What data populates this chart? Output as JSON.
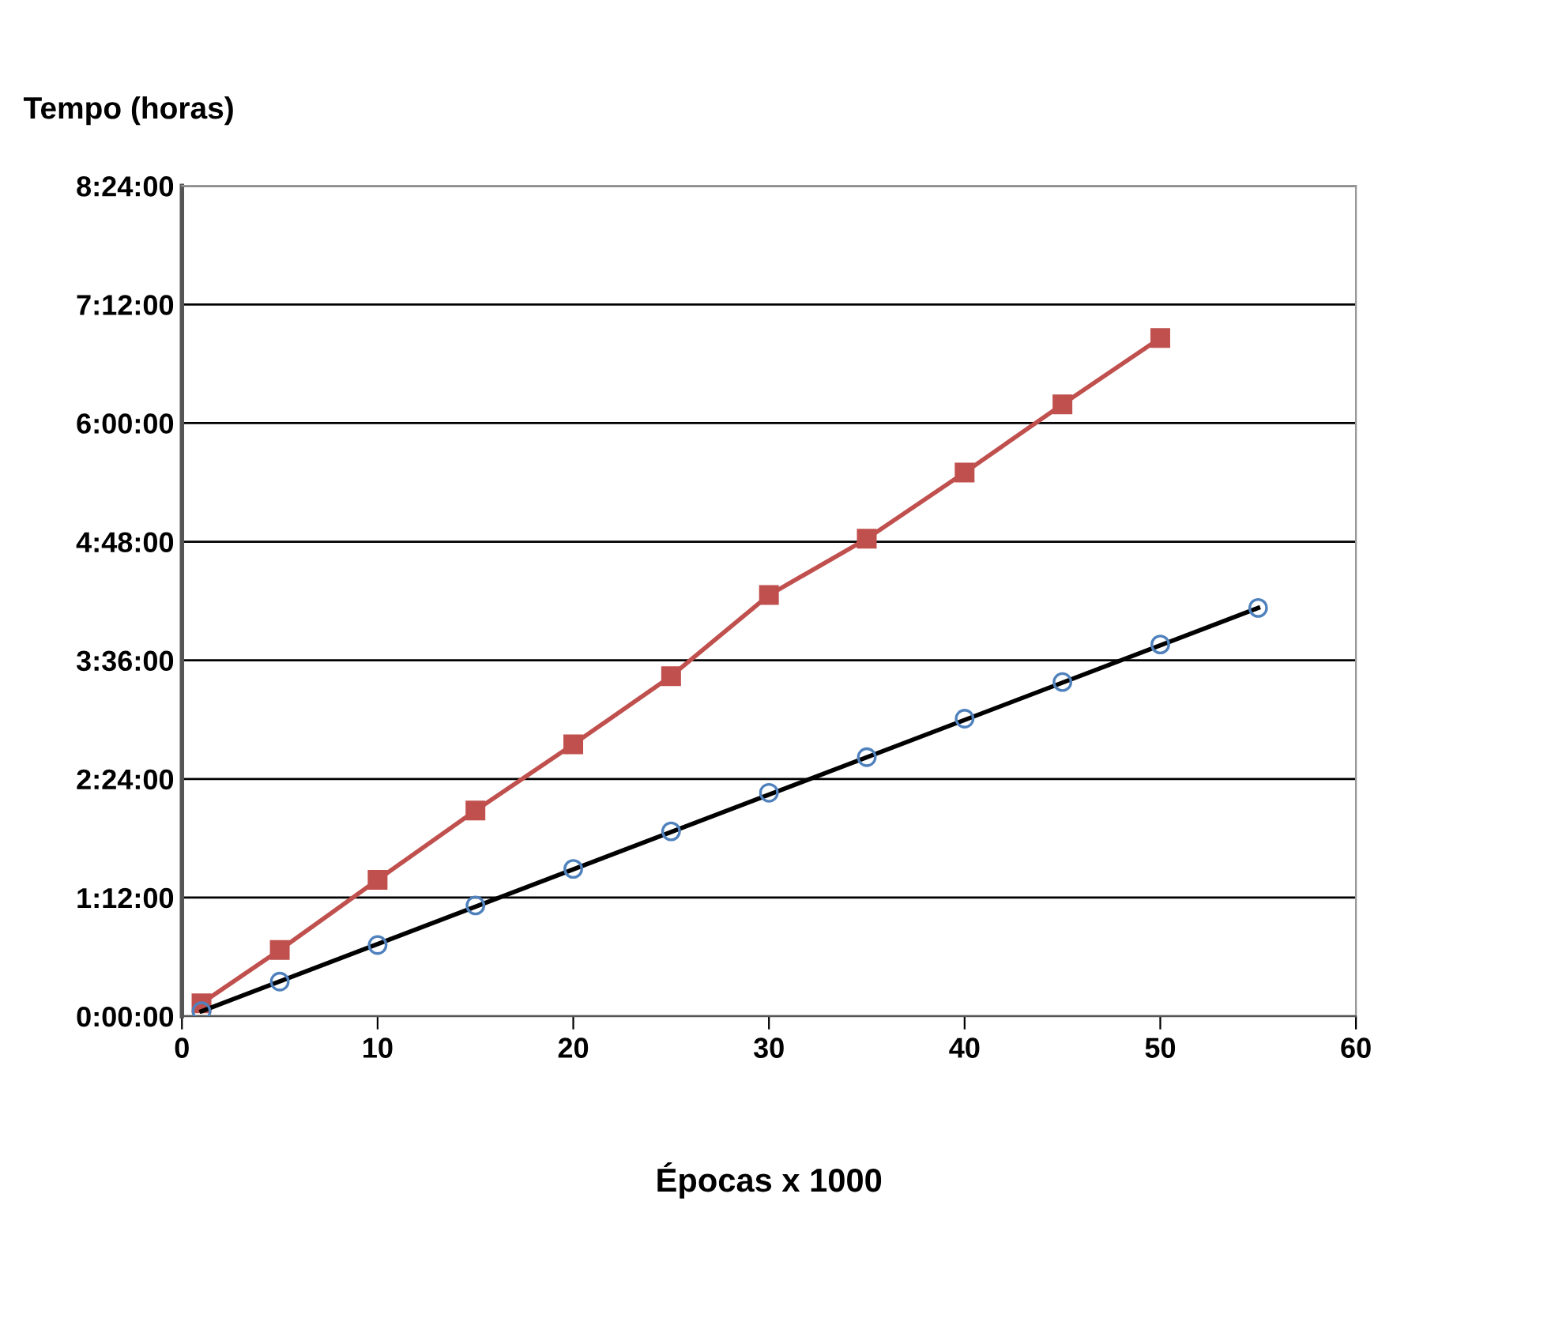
{
  "chart_data": {
    "type": "line",
    "ylabel": "Tempo (horas)",
    "xlabel": "Épocas x 1000",
    "xlim": [
      0,
      60
    ],
    "xticks": [
      0,
      10,
      20,
      30,
      40,
      50,
      60
    ],
    "ylim": [
      0,
      8.4
    ],
    "yticks": [
      {
        "value": 0,
        "label": "0:00:00"
      },
      {
        "value": 1.2,
        "label": "1:12:00"
      },
      {
        "value": 2.4,
        "label": "2:24:00"
      },
      {
        "value": 3.6,
        "label": "3:36:00"
      },
      {
        "value": 4.8,
        "label": "4:48:00"
      },
      {
        "value": 6.0,
        "label": "6:00:00"
      },
      {
        "value": 7.2,
        "label": "7:12:00"
      },
      {
        "value": 8.4,
        "label": "8:24:00"
      }
    ],
    "grid": "y",
    "legend": false,
    "series": [
      {
        "color": "#c0504d",
        "marker": "square",
        "x": [
          1,
          5,
          10,
          15,
          20,
          25,
          30,
          35,
          40,
          45,
          50
        ],
        "values": [
          0.13,
          0.67,
          1.38,
          2.08,
          2.75,
          3.44,
          4.26,
          4.83,
          5.5,
          6.19,
          6.86
        ]
      },
      {
        "color": "#000000",
        "marker": "none",
        "x": [
          1,
          55
        ],
        "values": [
          0.05,
          4.13
        ]
      },
      {
        "type": "scatter",
        "color": "#4f81bd",
        "marker": "circle",
        "x": [
          1,
          5,
          10,
          15,
          20,
          25,
          30,
          35,
          40,
          45,
          50,
          55
        ],
        "values": [
          0.05,
          0.35,
          0.72,
          1.12,
          1.49,
          1.87,
          2.26,
          2.62,
          3.01,
          3.38,
          3.76,
          4.13
        ]
      }
    ]
  }
}
